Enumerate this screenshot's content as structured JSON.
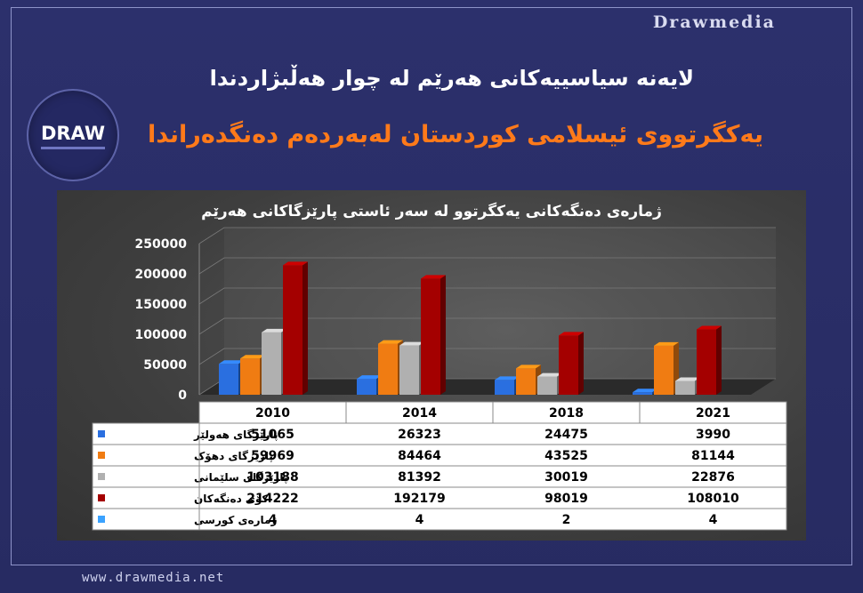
{
  "brand_top": "Drawmedia",
  "brand_bottom": "www.drawmedia.net",
  "logo_text": "DRAW",
  "title_line1": "لایەنە سیاسییەکانی هەرێم لە چوار هەڵبژاردندا",
  "title_line2": "یەکگرتووی ئیسلامی کوردستان لەبەردەم دەنگدەراندا",
  "colors": {
    "background": "#2b2f6a",
    "title2": "#ff7a1a",
    "series": [
      "#2a6fe0",
      "#f07c12",
      "#b0b0b0",
      "#a40000",
      "#3aa2ff"
    ]
  },
  "chart_data": {
    "type": "bar",
    "title": "ژمارەی دەنگەکانی یەکگرتوو لە سەر ئاستی پارێزگاکانی هەرێم",
    "categories": [
      "2010",
      "2014",
      "2018",
      "2021"
    ],
    "ylim": [
      0,
      250000
    ],
    "yticks": [
      "250000",
      "200000",
      "150000",
      "100000",
      "50000",
      "0"
    ],
    "grid": true,
    "series": [
      {
        "name": "پارێزگای هەولێر",
        "values": [
          51065,
          26323,
          24475,
          3990
        ]
      },
      {
        "name": "پارێزگای دهۆک",
        "values": [
          59969,
          84464,
          43525,
          81144
        ]
      },
      {
        "name": "پارێزگای سلێمانی",
        "values": [
          103188,
          81392,
          30019,
          22876
        ]
      },
      {
        "name": "کۆی دەنگەکان",
        "values": [
          214222,
          192179,
          98019,
          108010
        ]
      },
      {
        "name": "ژمارەی کورسی",
        "values": [
          4,
          4,
          2,
          4
        ]
      }
    ]
  }
}
